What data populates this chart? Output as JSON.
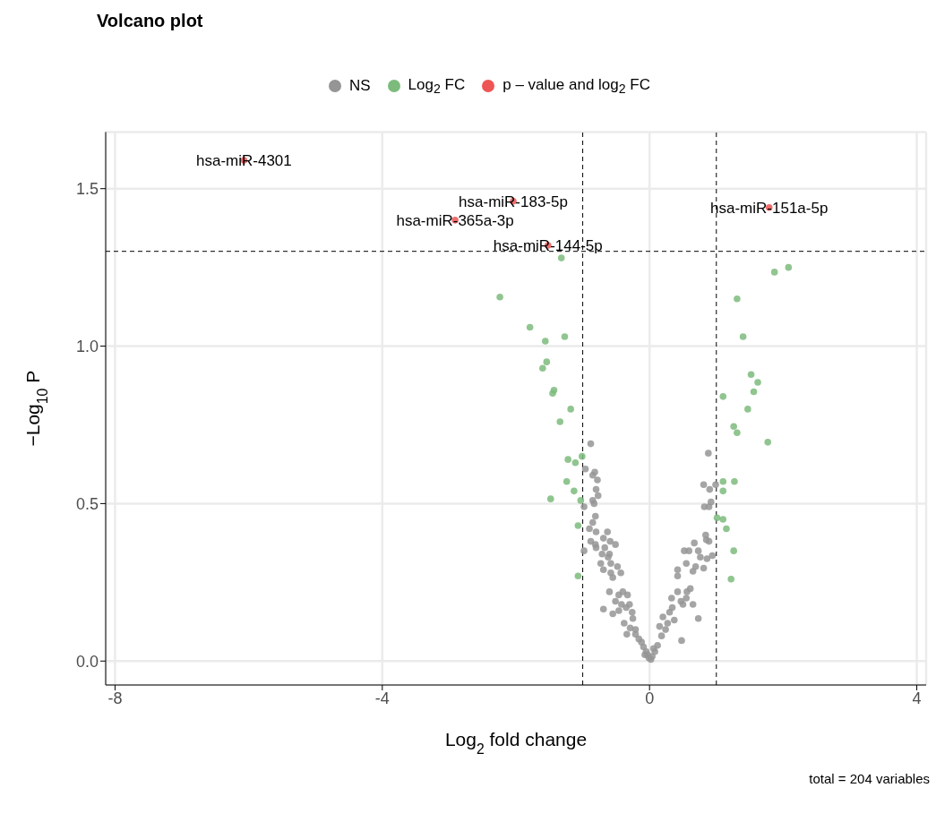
{
  "chart_data": {
    "type": "scatter",
    "title": "Volcano plot",
    "xlabel": "Log$_{2}$ fold change",
    "ylabel": "−Log$_{10}$ P",
    "xlim": [
      -8.14,
      4.14
    ],
    "ylim": [
      -0.076,
      1.68
    ],
    "xticks": [
      -8,
      -4,
      0,
      4
    ],
    "yticks": [
      {
        "value": 0,
        "label": "0.0"
      },
      0.5,
      {
        "value": 1,
        "label": "1.0"
      },
      1.5
    ],
    "grid": true,
    "legend": "top",
    "marker": "circle",
    "ref_lines": [
      {
        "axis": "x",
        "value": -1,
        "line_style": "dashed",
        "color": "#000000"
      },
      {
        "axis": "x",
        "value": 1,
        "line_style": "dashed",
        "color": "#000000"
      },
      {
        "axis": "y",
        "value": 1.301,
        "line_style": "dashed",
        "color": "#000000"
      }
    ],
    "series": [
      {
        "name": "NS",
        "color": "#959595",
        "x": [
          -0.88,
          -0.96,
          -0.82,
          -0.85,
          -0.78,
          -0.8,
          -0.77,
          -0.85,
          -0.83,
          -0.98,
          -0.81,
          -0.85,
          -0.9,
          -0.8,
          -0.63,
          -0.88,
          -0.81,
          -0.69,
          -0.59,
          -0.51,
          -0.8,
          -0.67,
          -0.6,
          -0.71,
          -0.98,
          -0.58,
          -0.48,
          -0.43,
          -0.58,
          -0.69,
          -0.55,
          -0.6,
          -0.46,
          -0.33,
          -0.51,
          -0.42,
          -0.69,
          -0.55,
          -0.46,
          -0.35,
          -0.26,
          -0.25,
          -0.38,
          -0.29,
          -0.21,
          -0.34,
          -0.21,
          -0.16,
          -0.09,
          -0.05,
          -0.01,
          0.04,
          0.08,
          0.12,
          0.18,
          0.24,
          0.27,
          0.3,
          0.34,
          0.37,
          0.48,
          0.42,
          0.56,
          0.47,
          0.5,
          0.55,
          0.65,
          0.73,
          0.42,
          0.42,
          0.55,
          0.65,
          0.69,
          0.81,
          0.52,
          0.59,
          0.67,
          0.73,
          0.76,
          0.86,
          0.94,
          0.84,
          0.85,
          0.89,
          0.82,
          0.92,
          0.89,
          0.81,
          0.9,
          0.99,
          0.88,
          -0.12,
          -0.07,
          0.02,
          0.06,
          0.15,
          0.2,
          -0.03,
          -0.3,
          -0.4,
          -0.62,
          -0.73,
          0.33,
          0.61
        ],
        "values": [
          0.69,
          0.61,
          0.6,
          0.59,
          0.575,
          0.545,
          0.525,
          0.51,
          0.5,
          0.49,
          0.46,
          0.44,
          0.42,
          0.41,
          0.41,
          0.38,
          0.37,
          0.39,
          0.38,
          0.37,
          0.36,
          0.36,
          0.34,
          0.34,
          0.35,
          0.31,
          0.3,
          0.28,
          0.28,
          0.29,
          0.265,
          0.22,
          0.21,
          0.21,
          0.19,
          0.18,
          0.165,
          0.15,
          0.16,
          0.17,
          0.155,
          0.135,
          0.12,
          0.105,
          0.1,
          0.085,
          0.085,
          0.07,
          0.045,
          0.03,
          0.01,
          0.015,
          0.03,
          0.05,
          0.08,
          0.1,
          0.12,
          0.155,
          0.17,
          0.13,
          0.065,
          0.22,
          0.22,
          0.19,
          0.18,
          0.2,
          0.18,
          0.135,
          0.29,
          0.27,
          0.31,
          0.285,
          0.3,
          0.295,
          0.35,
          0.35,
          0.375,
          0.35,
          0.33,
          0.325,
          0.335,
          0.4,
          0.385,
          0.38,
          0.49,
          0.505,
          0.49,
          0.56,
          0.545,
          0.56,
          0.66,
          0.06,
          0.02,
          0.005,
          0.04,
          0.11,
          0.14,
          0.02,
          0.18,
          0.22,
          0.33,
          0.31,
          0.2,
          0.23
        ]
      },
      {
        "name": "Log$_{2}$ FC",
        "color": "#7dbb7d",
        "x": [
          -2.24,
          -1.79,
          -1.56,
          -1.27,
          -1.54,
          -1.6,
          -1.45,
          -1.18,
          -1.34,
          -1.32,
          -1.22,
          -1.11,
          -1.01,
          -1.48,
          -1.24,
          -1.13,
          -1.03,
          -1.07,
          -1.07,
          -1.43,
          2.08,
          1.87,
          1.31,
          1.4,
          1.52,
          1.62,
          1.56,
          1.1,
          1.47,
          1.26,
          1.31,
          1.77,
          1.1,
          1.27,
          1.1,
          1.01,
          1.1,
          1.15,
          1.26,
          1.22
        ],
        "values": [
          1.156,
          1.06,
          1.016,
          1.03,
          0.95,
          0.93,
          0.85,
          0.8,
          0.76,
          1.28,
          0.64,
          0.63,
          0.65,
          0.515,
          0.57,
          0.54,
          0.51,
          0.43,
          0.27,
          0.86,
          1.25,
          1.235,
          1.15,
          1.03,
          0.91,
          0.885,
          0.855,
          0.84,
          0.8,
          0.745,
          0.725,
          0.695,
          0.57,
          0.57,
          0.54,
          0.455,
          0.45,
          0.42,
          0.35,
          0.26
        ]
      },
      {
        "name": "p – value and log$_{2}$ FC",
        "color": "#ee5555",
        "x": [
          -6.07,
          -2.04,
          -2.91,
          -1.52,
          1.79
        ],
        "values": [
          1.59,
          1.46,
          1.4,
          1.32,
          1.44
        ]
      }
    ],
    "annotations": [
      {
        "text": "hsa-miR-4301",
        "x": -6.07,
        "y": 1.59
      },
      {
        "text": "hsa-miR-183-5p",
        "x": -2.04,
        "y": 1.46
      },
      {
        "text": "hsa-miR-365a-3p",
        "x": -2.91,
        "y": 1.4
      },
      {
        "text": "hsa-miR-144-5p",
        "x": -1.52,
        "y": 1.32
      },
      {
        "text": "hsa-miR-151a-5p",
        "x": 1.79,
        "y": 1.44
      },
      "total = 204 variables"
    ]
  }
}
